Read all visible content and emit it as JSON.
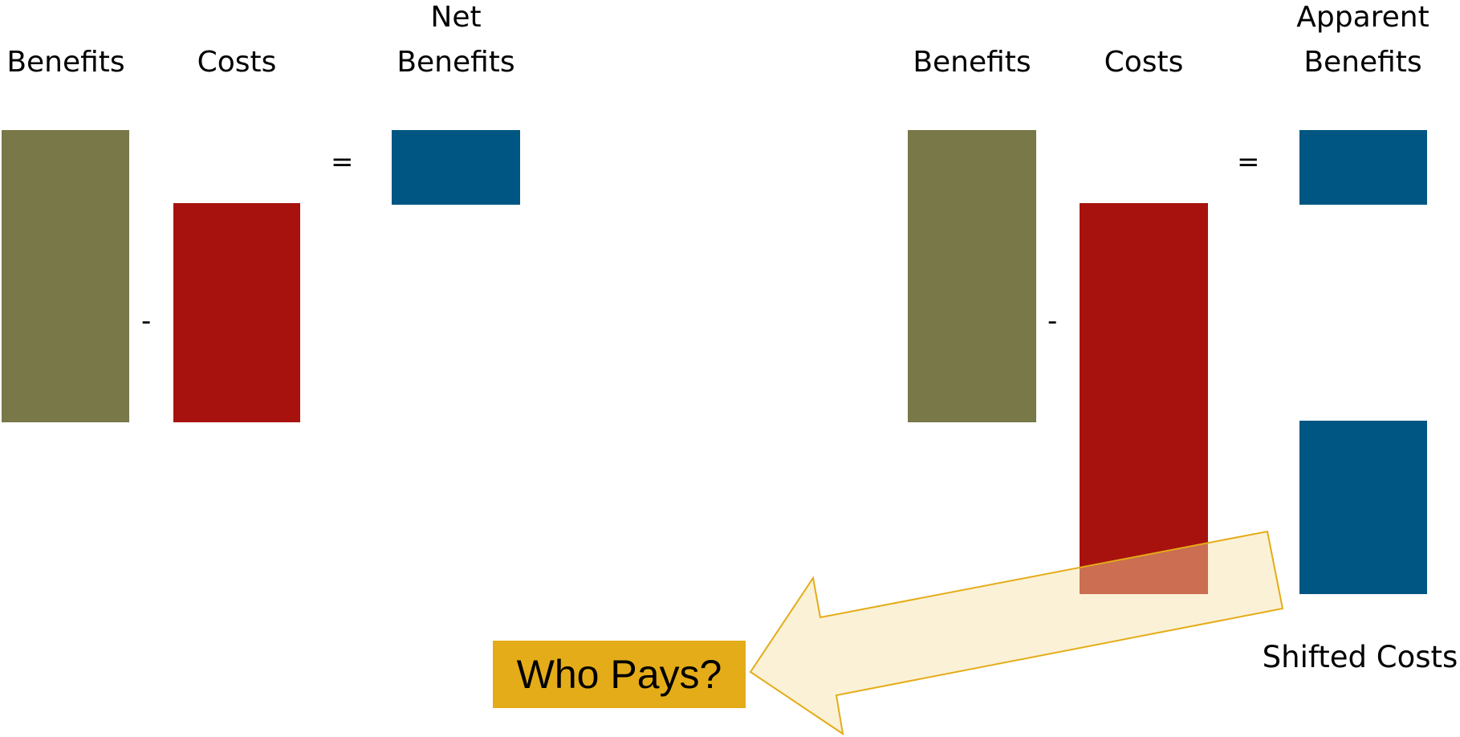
{
  "colors": {
    "benefits": "#787848",
    "costs": "#a8120e",
    "net": "#005682",
    "arrow_fill": "#fbf0d8",
    "arrow_stroke": "#e4ac18",
    "who_pays_bg": "#e4ac18"
  },
  "left_equation": {
    "benefits_label": "Benefits",
    "costs_label": "Costs",
    "net_label_line1": "Net",
    "net_label_line2": "Benefits",
    "minus": "-",
    "equals": "="
  },
  "right_equation": {
    "benefits_label": "Benefits",
    "costs_label": "Costs",
    "apparent_label_line1": "Apparent",
    "apparent_label_line2": "Benefits",
    "minus": "-",
    "equals": "=",
    "shifted_label": "Shifted Costs"
  },
  "callout": {
    "text": "Who Pays?"
  }
}
